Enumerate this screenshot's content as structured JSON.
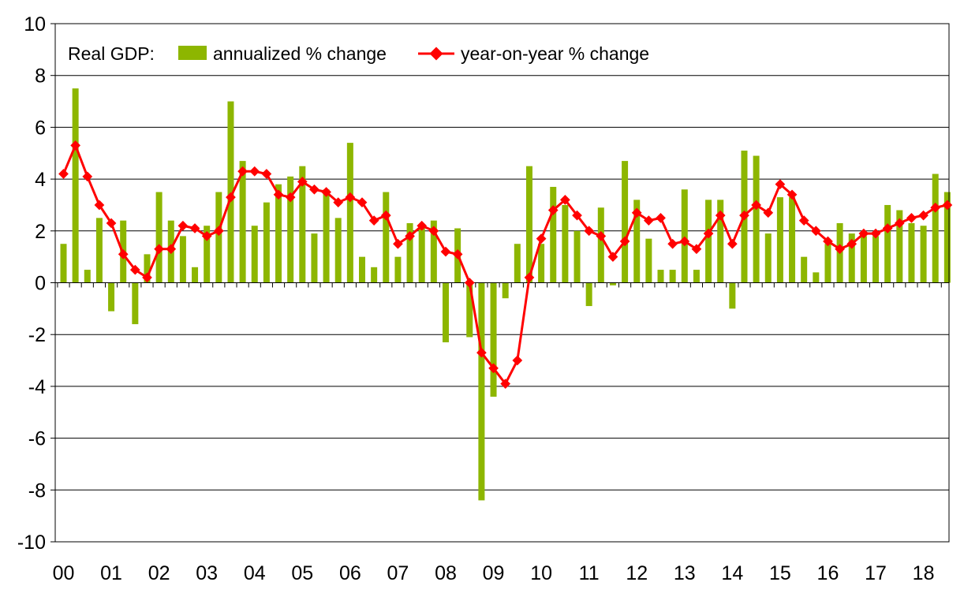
{
  "chart_data": {
    "type": "bar+line",
    "legend": {
      "prefix": "Real GDP:",
      "position": "top-left"
    },
    "ylim": [
      -10,
      10
    ],
    "yticks": [
      -10,
      -8,
      -6,
      -4,
      -2,
      0,
      2,
      4,
      6,
      8,
      10
    ],
    "xtick_labels": [
      "00",
      "01",
      "02",
      "03",
      "04",
      "05",
      "06",
      "07",
      "08",
      "09",
      "10",
      "11",
      "12",
      "13",
      "14",
      "15",
      "16",
      "17",
      "18"
    ],
    "grid": "horizontal",
    "quarters_per_year": 4,
    "series": [
      {
        "name": "annualized % change",
        "kind": "bar",
        "color": "#8db600",
        "values": [
          1.5,
          7.5,
          0.5,
          2.5,
          -1.1,
          2.4,
          -1.6,
          1.1,
          3.5,
          2.4,
          1.8,
          0.6,
          2.2,
          3.5,
          7.0,
          4.7,
          2.2,
          3.1,
          3.8,
          4.1,
          4.5,
          1.9,
          3.6,
          2.5,
          5.4,
          1.0,
          0.6,
          3.5,
          1.0,
          2.3,
          2.2,
          2.4,
          -2.3,
          2.1,
          -2.1,
          -8.4,
          -4.4,
          -0.6,
          1.5,
          4.5,
          1.5,
          3.7,
          3.0,
          2.0,
          -0.9,
          2.9,
          -0.1,
          4.7,
          3.2,
          1.7,
          0.5,
          0.5,
          3.6,
          0.5,
          3.2,
          3.2,
          -1.0,
          5.1,
          4.9,
          1.9,
          3.3,
          3.3,
          1.0,
          0.4,
          1.5,
          2.3,
          1.9,
          1.8,
          1.8,
          3.0,
          2.8,
          2.3,
          2.2,
          4.2,
          3.5
        ]
      },
      {
        "name": "year-on-year % change",
        "kind": "line",
        "color": "#ff0000",
        "values": [
          4.2,
          5.3,
          4.1,
          3.0,
          2.3,
          1.1,
          0.5,
          0.2,
          1.3,
          1.3,
          2.2,
          2.1,
          1.8,
          2.0,
          3.3,
          4.3,
          4.3,
          4.2,
          3.4,
          3.3,
          3.9,
          3.6,
          3.5,
          3.1,
          3.3,
          3.1,
          2.4,
          2.6,
          1.5,
          1.8,
          2.2,
          2.0,
          1.2,
          1.1,
          0.0,
          -2.7,
          -3.3,
          -3.9,
          -3.0,
          0.2,
          1.7,
          2.8,
          3.2,
          2.6,
          2.0,
          1.8,
          1.0,
          1.6,
          2.7,
          2.4,
          2.5,
          1.5,
          1.6,
          1.3,
          1.9,
          2.6,
          1.5,
          2.6,
          3.0,
          2.7,
          3.8,
          3.4,
          2.4,
          2.0,
          1.6,
          1.3,
          1.5,
          1.9,
          1.9,
          2.1,
          2.3,
          2.5,
          2.6,
          2.9,
          3.0
        ]
      }
    ]
  }
}
